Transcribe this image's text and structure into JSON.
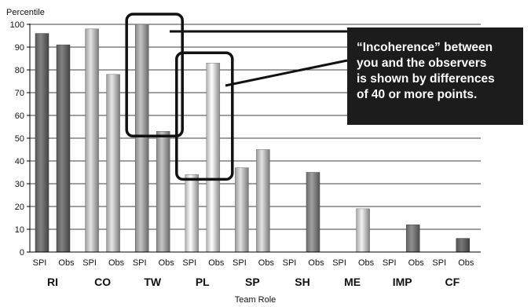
{
  "chart_data": {
    "type": "bar",
    "ylabel": "Percentile",
    "xlabel": "Team Role",
    "ylim": [
      0,
      100
    ],
    "yticks": [
      0,
      10,
      20,
      30,
      40,
      50,
      60,
      70,
      80,
      90,
      100
    ],
    "grid": true,
    "categories": [
      "RI",
      "CO",
      "TW",
      "PL",
      "SP",
      "SH",
      "ME",
      "IMP",
      "CF"
    ],
    "bar_labels": [
      "SPI",
      "Obs"
    ],
    "series": [
      {
        "name": "SPI",
        "values": [
          96,
          98,
          100,
          34,
          37,
          0,
          0,
          0,
          0
        ]
      },
      {
        "name": "Obs",
        "values": [
          91,
          78,
          53,
          83,
          45,
          35,
          19,
          12,
          6
        ]
      }
    ],
    "highlights": [
      {
        "category": "TW"
      },
      {
        "category": "PL"
      }
    ],
    "annotation": {
      "lines": [
        "“Incoherence” between",
        "you and the observers",
        "is shown by differences",
        "of 40 or more points."
      ]
    },
    "colors": {
      "RI": "#6e6e6e",
      "CO": "#c4c4c4",
      "TW": "#a8a8a8",
      "PL": "#dcdcdc",
      "SP": "#c0c0c0",
      "SH": "#888888",
      "ME": "#cfcfcf",
      "IMP": "#7a7a7a",
      "CF": "#666666",
      "callout": "#1c1c1c",
      "grid": "#000000"
    }
  }
}
